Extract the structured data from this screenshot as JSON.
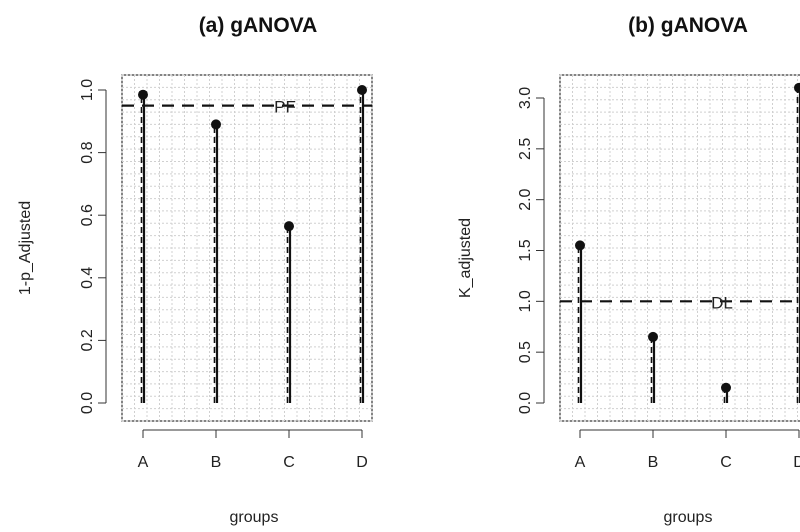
{
  "chart_data": [
    {
      "type": "lollipop",
      "title": "(a) gANOVA",
      "xlabel": "groups",
      "ylabel": "1-p_Adjusted",
      "categories": [
        "A",
        "B",
        "C",
        "D"
      ],
      "values": [
        0.985,
        0.89,
        0.565,
        1.0
      ],
      "ylim": [
        0.0,
        1.0
      ],
      "yticks": [
        "0.0",
        "0.2",
        "0.4",
        "0.6",
        "0.8",
        "1.0"
      ],
      "grid": "dotted",
      "reference_line": {
        "value": 0.95,
        "label": "PF",
        "style": "dashed"
      }
    },
    {
      "type": "lollipop",
      "title": "(b) gANOVA",
      "xlabel": "groups",
      "ylabel": "K_adjusted",
      "categories": [
        "A",
        "B",
        "C",
        "D"
      ],
      "values": [
        1.55,
        0.65,
        0.15,
        3.1
      ],
      "ylim": [
        0.0,
        3.0
      ],
      "yticks": [
        "0.0",
        "0.5",
        "1.0",
        "1.5",
        "2.0",
        "2.5",
        "3.0"
      ],
      "grid": "dotted",
      "reference_line": {
        "value": 1.0,
        "label": "DL",
        "style": "dashed"
      }
    }
  ]
}
